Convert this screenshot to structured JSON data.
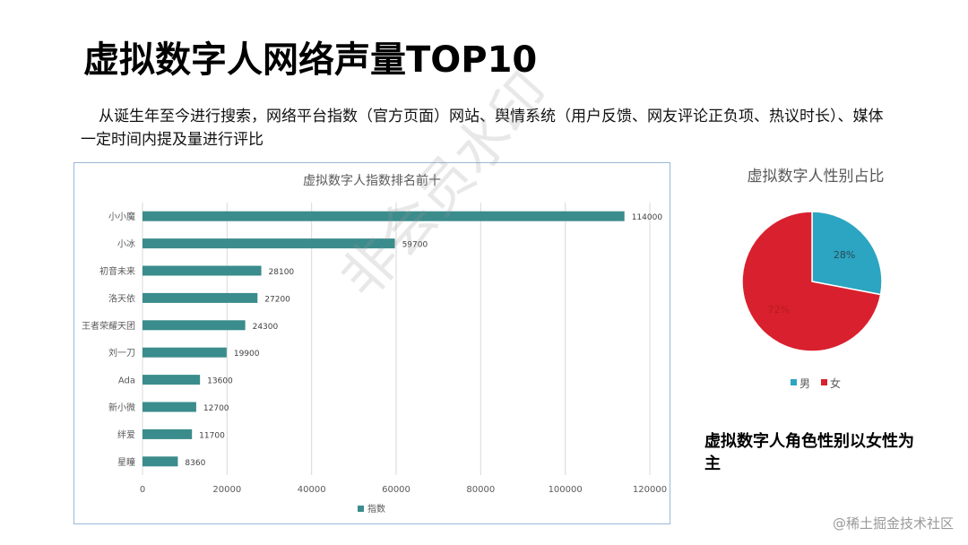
{
  "slide": {
    "title": "虚拟数字人网络声量TOP10",
    "intro": "从诞生年至今进行搜索，网络平台指数（官方页面）网站、舆情系统（用户反馈、网友评论正负项、热议时长）、媒体一定时间内提及量进行评比",
    "conclusion": "虚拟数字人角色性别以女性为主",
    "watermark": "非会员水印",
    "source": "@稀土掘金技术社区"
  },
  "colors": {
    "bar": "#3b8c8c",
    "pie_male": "#2ba5c1",
    "pie_female": "#d9202e",
    "axis_text": "#595959",
    "grid": "#d9d9d9"
  },
  "chart_data": [
    {
      "type": "bar",
      "orientation": "horizontal",
      "title": "虚拟数字人指数排名前十",
      "categories": [
        "小小魔",
        "小冰",
        "初音未来",
        "洛天依",
        "王者荣耀天团",
        "刘一刀",
        "Ada",
        "新小微",
        "绊爱",
        "星瞳"
      ],
      "series": [
        {
          "name": "指数",
          "values": [
            114000,
            59700,
            28100,
            27200,
            24300,
            19900,
            13600,
            12700,
            11700,
            8360
          ]
        }
      ],
      "data_labels": [
        "114000",
        "59700",
        "28100",
        "27200",
        "24300",
        "19900",
        "13600",
        "12700",
        "11700",
        "8360"
      ],
      "xlim": [
        0,
        120000
      ],
      "x_ticks": [
        0,
        20000,
        40000,
        60000,
        80000,
        100000,
        120000
      ],
      "grid": true,
      "legend": "bottom"
    },
    {
      "type": "pie",
      "title": "虚拟数字人性别占比",
      "categories": [
        "男",
        "女"
      ],
      "values": [
        28,
        72
      ],
      "data_labels": [
        "28%",
        "72%"
      ],
      "legend": "bottom"
    }
  ]
}
